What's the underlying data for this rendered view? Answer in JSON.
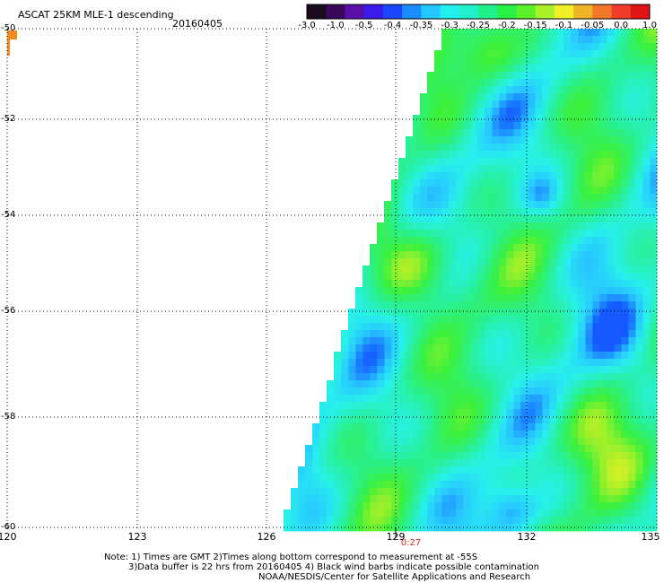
{
  "header": {
    "title": "ASCAT 25KM MLE-1 descending",
    "date": "20160405"
  },
  "colorbar": {
    "colors": [
      "#1a0a1e",
      "#3a0a5a",
      "#5a10a8",
      "#3a1ae8",
      "#1a46ff",
      "#1a8cff",
      "#22c8ff",
      "#22f0ee",
      "#22f0c8",
      "#22f08c",
      "#28f046",
      "#5cf028",
      "#a8f028",
      "#f0f028",
      "#f0b428",
      "#f07828",
      "#f03c28",
      "#e01414"
    ],
    "tick_labels": [
      "-3.0",
      "-1.0",
      "-0.5",
      "-0.4",
      "-0.35",
      "-0.3",
      "-0.25",
      "-0.2",
      "-0.15",
      "-0.1",
      "-0.05",
      "0.0",
      "1.0"
    ]
  },
  "axes": {
    "lat_labels": [
      "-50",
      "-52",
      "-54",
      "-56",
      "-58",
      "-60"
    ],
    "lon_labels": [
      "120",
      "123",
      "126",
      "129",
      "132",
      "135"
    ]
  },
  "time_marker": "0:27",
  "notes": {
    "line1": "Note: 1) Times are GMT 2)Times along bottom correspond to measurement at -55S",
    "line2": "3)Data buffer is 22 hrs from 20160405 4) Black wind barbs indicate possible contamination",
    "line3": "NOAA/NESDIS/Center for Satellite Applications and Research"
  }
}
